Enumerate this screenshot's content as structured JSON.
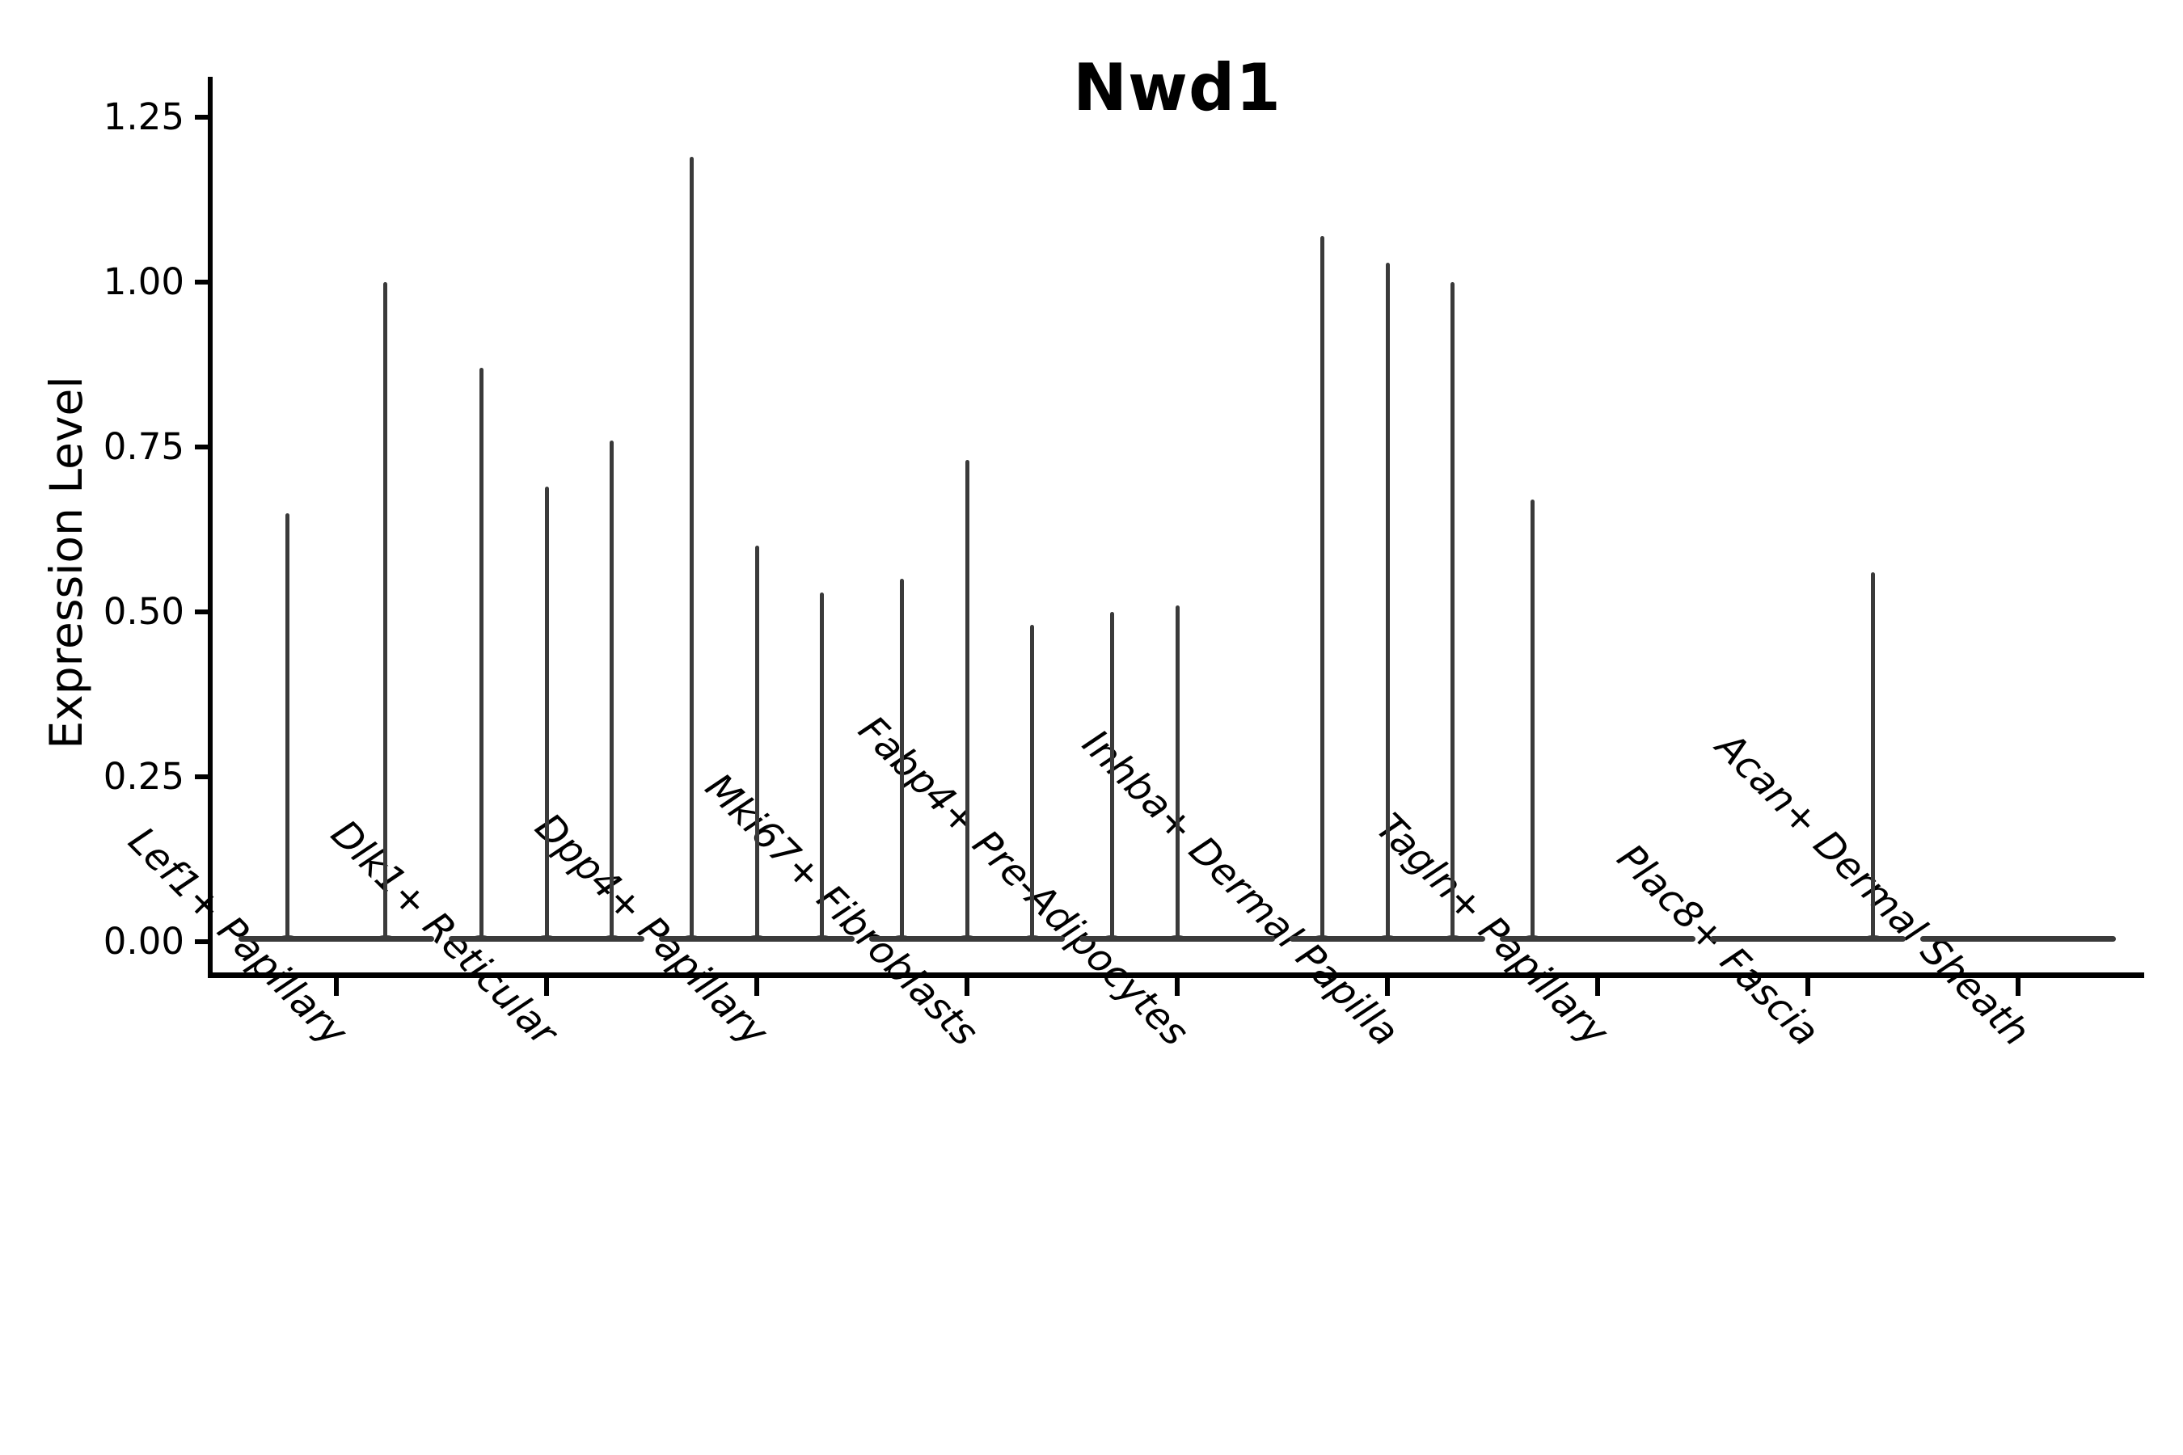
{
  "chart_data": {
    "type": "violin",
    "title": "Nwd1",
    "ylabel": "Expression Level",
    "xlabel": "",
    "ylim": [
      0,
      1.25
    ],
    "ytick_values": [
      0,
      0.25,
      0.5,
      0.75,
      1.0,
      1.25
    ],
    "ytick_labels": [
      "0.00",
      "0.25",
      "0.50",
      "0.75",
      "1.00",
      "1.25"
    ],
    "grid": false,
    "legend_position": "none",
    "x_label_rotation_deg": 45,
    "violin_style": "near-zero-width spikes rising from a flat baseline at 0; per category 2-3 dodged violins; value 0 means fully flat violin",
    "categories": [
      "Lef1+ Papillary",
      "Dlk1+ Reticular",
      "Dpp4+ Papillary",
      "Mki67+ Fibroblasts",
      "Fabp4+ Pre-Adipocytes",
      "Inhba+ Dermal Papilla",
      "Tagln+ Papillary",
      "Plac8+ Fascia",
      "Acan+ Dermal Sheath"
    ],
    "violins": [
      {
        "category": "Lef1+ Papillary",
        "values": [
          0.65,
          1.0
        ]
      },
      {
        "category": "Dlk1+ Reticular",
        "values": [
          0.87,
          0.69,
          0.76
        ]
      },
      {
        "category": "Dpp4+ Papillary",
        "values": [
          1.19,
          0.6,
          0.53
        ]
      },
      {
        "category": "Mki67+ Fibroblasts",
        "values": [
          0.55,
          0.73,
          0.48
        ]
      },
      {
        "category": "Fabp4+ Pre-Adipocytes",
        "values": [
          0.5,
          0.51,
          0.0
        ]
      },
      {
        "category": "Inhba+ Dermal Papilla",
        "values": [
          1.07,
          1.03,
          1.0
        ]
      },
      {
        "category": "Tagln+ Papillary",
        "values": [
          0.67,
          0.0,
          0.0
        ]
      },
      {
        "category": "Plac8+ Fascia",
        "values": [
          0.0,
          0.0,
          0.56
        ]
      },
      {
        "category": "Acan+ Dermal Sheath",
        "values": [
          0.0,
          0.0,
          0.0
        ]
      }
    ],
    "colors": {
      "violin": "#3a3a3a",
      "axis": "#000000",
      "text": "#000000",
      "background": "#ffffff"
    }
  }
}
